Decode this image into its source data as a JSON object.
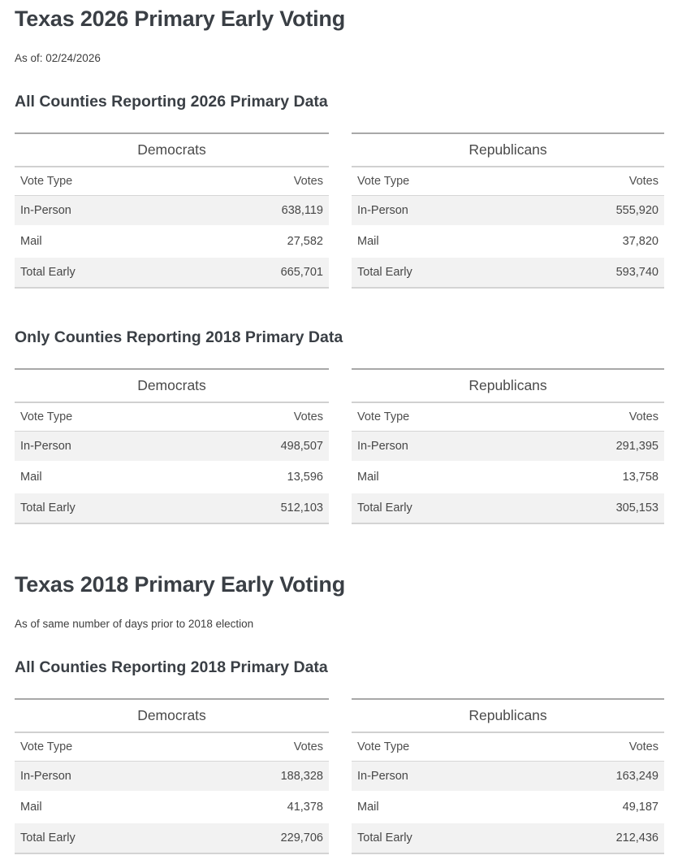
{
  "colors": {
    "heading_text": "#3a3f45",
    "body_text": "#3e3e3e",
    "table_text": "#474747",
    "row_stripe": "#f2f2f2",
    "table_top_border": "#a8a8a8",
    "party_underline": "#d0d0d0",
    "column_header_underline": "#d6d6d6",
    "table_bottom_border": "#d4d4d4"
  },
  "sections": [
    {
      "title": "Texas 2026 Primary Early Voting",
      "subtitle": "As of: 02/24/2026",
      "subsections": [
        {
          "heading": "All Counties Reporting 2026 Primary Data",
          "tables": [
            {
              "party": "Democrats",
              "columns": {
                "type": "Vote Type",
                "votes": "Votes"
              },
              "rows": [
                {
                  "type": "In-Person",
                  "votes": "638,119"
                },
                {
                  "type": "Mail",
                  "votes": "27,582"
                },
                {
                  "type": "Total Early",
                  "votes": "665,701"
                }
              ]
            },
            {
              "party": "Republicans",
              "columns": {
                "type": "Vote Type",
                "votes": "Votes"
              },
              "rows": [
                {
                  "type": "In-Person",
                  "votes": "555,920"
                },
                {
                  "type": "Mail",
                  "votes": "37,820"
                },
                {
                  "type": "Total Early",
                  "votes": "593,740"
                }
              ]
            }
          ]
        },
        {
          "heading": "Only Counties Reporting 2018 Primary Data",
          "tables": [
            {
              "party": "Democrats",
              "columns": {
                "type": "Vote Type",
                "votes": "Votes"
              },
              "rows": [
                {
                  "type": "In-Person",
                  "votes": "498,507"
                },
                {
                  "type": "Mail",
                  "votes": "13,596"
                },
                {
                  "type": "Total Early",
                  "votes": "512,103"
                }
              ]
            },
            {
              "party": "Republicans",
              "columns": {
                "type": "Vote Type",
                "votes": "Votes"
              },
              "rows": [
                {
                  "type": "In-Person",
                  "votes": "291,395"
                },
                {
                  "type": "Mail",
                  "votes": "13,758"
                },
                {
                  "type": "Total Early",
                  "votes": "305,153"
                }
              ]
            }
          ]
        }
      ]
    },
    {
      "title": "Texas 2018 Primary Early Voting",
      "subtitle": "As of same number of days prior to 2018 election",
      "subsections": [
        {
          "heading": "All Counties Reporting 2018 Primary Data",
          "tables": [
            {
              "party": "Democrats",
              "columns": {
                "type": "Vote Type",
                "votes": "Votes"
              },
              "rows": [
                {
                  "type": "In-Person",
                  "votes": "188,328"
                },
                {
                  "type": "Mail",
                  "votes": "41,378"
                },
                {
                  "type": "Total Early",
                  "votes": "229,706"
                }
              ]
            },
            {
              "party": "Republicans",
              "columns": {
                "type": "Vote Type",
                "votes": "Votes"
              },
              "rows": [
                {
                  "type": "In-Person",
                  "votes": "163,249"
                },
                {
                  "type": "Mail",
                  "votes": "49,187"
                },
                {
                  "type": "Total Early",
                  "votes": "212,436"
                }
              ]
            }
          ]
        }
      ]
    }
  ]
}
